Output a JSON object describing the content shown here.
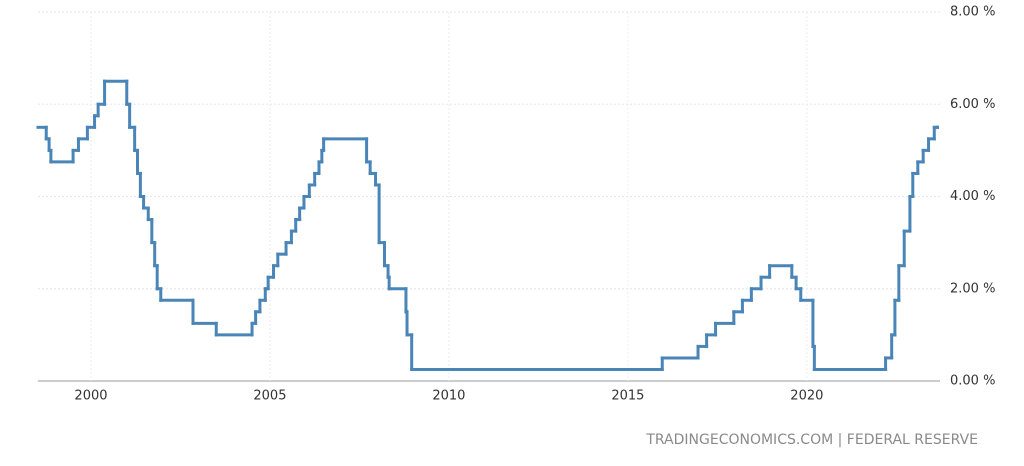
{
  "chart_data": {
    "type": "line",
    "step": true,
    "source": "TRADINGECONOMICS.COM | FEDERAL RESERVE",
    "xlim": [
      1998.52,
      2023.72
    ],
    "ylim": [
      0,
      8
    ],
    "xticks": [
      2000,
      2005,
      2010,
      2015,
      2020
    ],
    "yticks": [
      {
        "value": 0,
        "label": "0.00 %"
      },
      {
        "value": 2,
        "label": "2.00 %"
      },
      {
        "value": 4,
        "label": "4.00 %"
      },
      {
        "value": 6,
        "label": "6.00 %"
      },
      {
        "value": 8,
        "label": "8.00 %"
      }
    ],
    "grid": true,
    "series": [
      {
        "color": "#4a85b8",
        "x": [
          1998.52,
          1998.75,
          1998.83,
          1998.88,
          1999.5,
          1999.65,
          1999.9,
          2000.1,
          2000.2,
          2000.38,
          2001.0,
          2001.08,
          2001.22,
          2001.3,
          2001.38,
          2001.47,
          2001.6,
          2001.7,
          2001.78,
          2001.85,
          2001.95,
          2002.85,
          2003.5,
          2004.5,
          2004.6,
          2004.72,
          2004.87,
          2004.95,
          2005.1,
          2005.22,
          2005.45,
          2005.6,
          2005.72,
          2005.83,
          2005.95,
          2006.1,
          2006.25,
          2006.37,
          2006.45,
          2006.5,
          2007.7,
          2007.8,
          2007.95,
          2008.05,
          2008.2,
          2008.3,
          2008.33,
          2008.8,
          2008.83,
          2008.96,
          2015.96,
          2016.96,
          2017.2,
          2017.45,
          2017.96,
          2018.2,
          2018.45,
          2018.72,
          2018.96,
          2019.58,
          2019.7,
          2019.83,
          2020.17,
          2020.21,
          2022.2,
          2022.37,
          2022.46,
          2022.57,
          2022.72,
          2022.88,
          2022.96,
          2023.1,
          2023.25,
          2023.4,
          2023.56,
          2023.65
        ],
        "values": [
          5.5,
          5.25,
          5.0,
          4.75,
          5.0,
          5.25,
          5.5,
          5.75,
          6.0,
          6.5,
          6.0,
          5.5,
          5.0,
          4.5,
          4.0,
          3.75,
          3.5,
          3.0,
          2.5,
          2.0,
          1.75,
          1.25,
          1.0,
          1.25,
          1.5,
          1.75,
          2.0,
          2.25,
          2.5,
          2.75,
          3.0,
          3.25,
          3.5,
          3.75,
          4.0,
          4.25,
          4.5,
          4.75,
          5.0,
          5.25,
          4.75,
          4.5,
          4.25,
          3.0,
          2.5,
          2.25,
          2.0,
          1.5,
          1.0,
          0.25,
          0.5,
          0.75,
          1.0,
          1.25,
          1.5,
          1.75,
          2.0,
          2.25,
          2.5,
          2.25,
          2.0,
          1.75,
          0.75,
          0.25,
          0.5,
          1.0,
          1.75,
          2.5,
          3.25,
          4.0,
          4.5,
          4.75,
          5.0,
          5.25,
          5.5,
          5.5
        ]
      }
    ]
  }
}
